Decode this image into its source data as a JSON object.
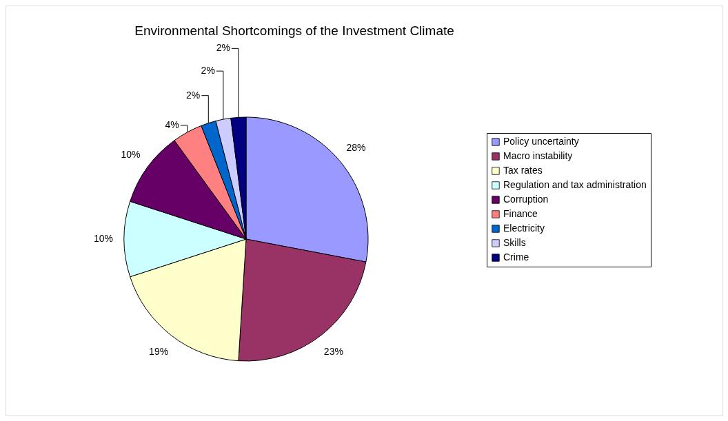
{
  "chart_data": {
    "type": "pie",
    "title": "Environmental Shortcomings of the Investment Climate",
    "categories": [
      "Policy uncertainty",
      "Macro instability",
      "Tax rates",
      "Regulation and tax administration",
      "Corruption",
      "Finance",
      "Electricity",
      "Skills",
      "Crime"
    ],
    "values": [
      28,
      23,
      19,
      10,
      10,
      4,
      2,
      2,
      2
    ],
    "colors": [
      "#9999ff",
      "#993366",
      "#ffffcc",
      "#ccffff",
      "#660066",
      "#ff8080",
      "#0066cc",
      "#ccccff",
      "#000080"
    ],
    "value_labels": [
      "28%",
      "23%",
      "19%",
      "10%",
      "10%",
      "4%",
      "2%",
      "2%",
      "2%"
    ],
    "legend": "right"
  }
}
